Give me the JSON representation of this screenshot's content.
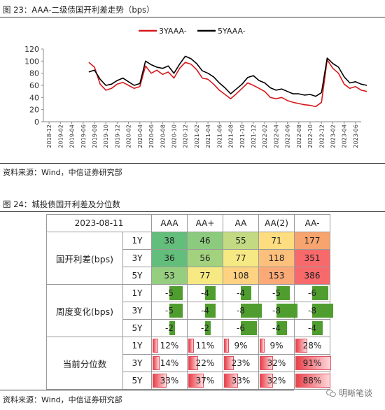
{
  "figure23": {
    "title": "图 23：AAA-二级债国开利差走势（bps）",
    "source": "资料来源：Wind，中信证券研究部"
  },
  "figure24": {
    "title": "图 24：城投债国开利差及分位数",
    "source": "资料来源：Wind，中信证券研究部"
  },
  "watermark": "明晰笔谈",
  "chart_data": {
    "type": "line",
    "title": "",
    "xlabel": "",
    "ylabel": "",
    "ylim": [
      0,
      120
    ],
    "yticks": [
      "0",
      "20",
      "40",
      "60",
      "80",
      "100",
      "120"
    ],
    "grid": false,
    "legend_position": "top-center",
    "x_tick_labels": [
      "2018-12",
      "2019-02",
      "2019-04",
      "2019-06",
      "2019-08",
      "2019-10",
      "2019-12",
      "2020-02",
      "2020-04",
      "2020-06",
      "2020-08",
      "2020-10",
      "2020-12",
      "2021-02",
      "2021-04",
      "2021-06",
      "2021-08",
      "2021-10",
      "2021-12",
      "2022-02",
      "2022-04",
      "2022-06",
      "2022-08",
      "2022-10",
      "2022-12",
      "2023-02",
      "2023-04",
      "2023-06"
    ],
    "x": [
      "2019-07",
      "2019-08",
      "2019-09",
      "2019-10",
      "2019-11",
      "2019-12",
      "2020-01",
      "2020-02",
      "2020-03",
      "2020-04",
      "2020-05",
      "2020-06",
      "2020-07",
      "2020-08",
      "2020-09",
      "2020-10",
      "2020-11",
      "2020-12",
      "2021-01",
      "2021-02",
      "2021-03",
      "2021-04",
      "2021-05",
      "2021-06",
      "2021-07",
      "2021-08",
      "2021-09",
      "2021-10",
      "2021-11",
      "2021-12",
      "2022-01",
      "2022-02",
      "2022-03",
      "2022-04",
      "2022-05",
      "2022-06",
      "2022-07",
      "2022-08",
      "2022-09",
      "2022-10",
      "2022-11",
      "2022-12",
      "2023-01",
      "2023-02",
      "2023-03",
      "2023-04",
      "2023-05",
      "2023-06",
      "2023-07",
      "2023-08"
    ],
    "series": [
      {
        "name": "3YAAA-",
        "color": "#d7191c",
        "values": [
          98,
          90,
          62,
          52,
          55,
          62,
          65,
          60,
          55,
          58,
          92,
          80,
          85,
          78,
          82,
          72,
          88,
          98,
          95,
          86,
          72,
          70,
          62,
          52,
          45,
          38,
          46,
          55,
          64,
          60,
          55,
          50,
          40,
          38,
          40,
          35,
          32,
          30,
          28,
          27,
          25,
          32,
          102,
          88,
          80,
          62,
          55,
          58,
          52,
          50
        ]
      },
      {
        "name": "5YAAA-",
        "color": "#000000",
        "values": [
          82,
          85,
          70,
          60,
          62,
          68,
          72,
          66,
          60,
          63,
          100,
          94,
          90,
          88,
          92,
          80,
          95,
          108,
          104,
          96,
          84,
          80,
          74,
          64,
          56,
          46,
          54,
          62,
          73,
          76,
          68,
          64,
          56,
          52,
          54,
          50,
          46,
          46,
          44,
          45,
          42,
          48,
          105,
          96,
          90,
          74,
          64,
          66,
          62,
          60
        ]
      }
    ]
  },
  "table": {
    "date": "2023-08-11",
    "columns": [
      "AAA",
      "AA+",
      "AA",
      "AA(2)",
      "AA-"
    ],
    "groups": [
      {
        "label": "国开利差(bps)",
        "kind": "heat",
        "rows": [
          {
            "tenor": "1Y",
            "values": [
              "38",
              "46",
              "55",
              "71",
              "177"
            ],
            "colors": [
              "#63be7b",
              "#8ccb7e",
              "#c4da82",
              "#fedd81",
              "#f8a46e"
            ]
          },
          {
            "tenor": "3Y",
            "values": [
              "36",
              "56",
              "77",
              "118",
              "351"
            ],
            "colors": [
              "#63be7b",
              "#a3d27f",
              "#f6e883",
              "#fdc07c",
              "#f8696b"
            ]
          },
          {
            "tenor": "5Y",
            "values": [
              "53",
              "77",
              "108",
              "153",
              "386"
            ],
            "colors": [
              "#95ce7f",
              "#f6e883",
              "#fed280",
              "#fbaa77",
              "#f8696b"
            ]
          }
        ]
      },
      {
        "label": "周度变化(bps)",
        "kind": "bar",
        "rows": [
          {
            "tenor": "1Y",
            "values": [
              "-5",
              "-4",
              "-4",
              "-5",
              "-6"
            ],
            "mags": [
              5,
              4,
              4,
              5,
              6
            ]
          },
          {
            "tenor": "3Y",
            "values": [
              "-5",
              "-4",
              "-8",
              "-8",
              "-8"
            ],
            "mags": [
              5,
              4,
              8,
              8,
              8
            ]
          },
          {
            "tenor": "5Y",
            "values": [
              "-2",
              "-2",
              "-6",
              "-4",
              "-4"
            ],
            "mags": [
              2,
              2,
              6,
              4,
              4
            ]
          }
        ]
      },
      {
        "label": "当前分位数",
        "kind": "pct",
        "rows": [
          {
            "tenor": "1Y",
            "values": [
              "12%",
              "11%",
              "9%",
              "9%",
              "28%"
            ],
            "fracs": [
              0.12,
              0.11,
              0.09,
              0.09,
              0.28
            ]
          },
          {
            "tenor": "3Y",
            "values": [
              "14%",
              "22%",
              "23%",
              "32%",
              "91%"
            ],
            "fracs": [
              0.14,
              0.22,
              0.23,
              0.32,
              0.91
            ]
          },
          {
            "tenor": "5Y",
            "values": [
              "33%",
              "37%",
              "33%",
              "32%",
              "88%"
            ],
            "fracs": [
              0.33,
              0.37,
              0.33,
              0.32,
              0.88
            ]
          }
        ]
      }
    ]
  }
}
